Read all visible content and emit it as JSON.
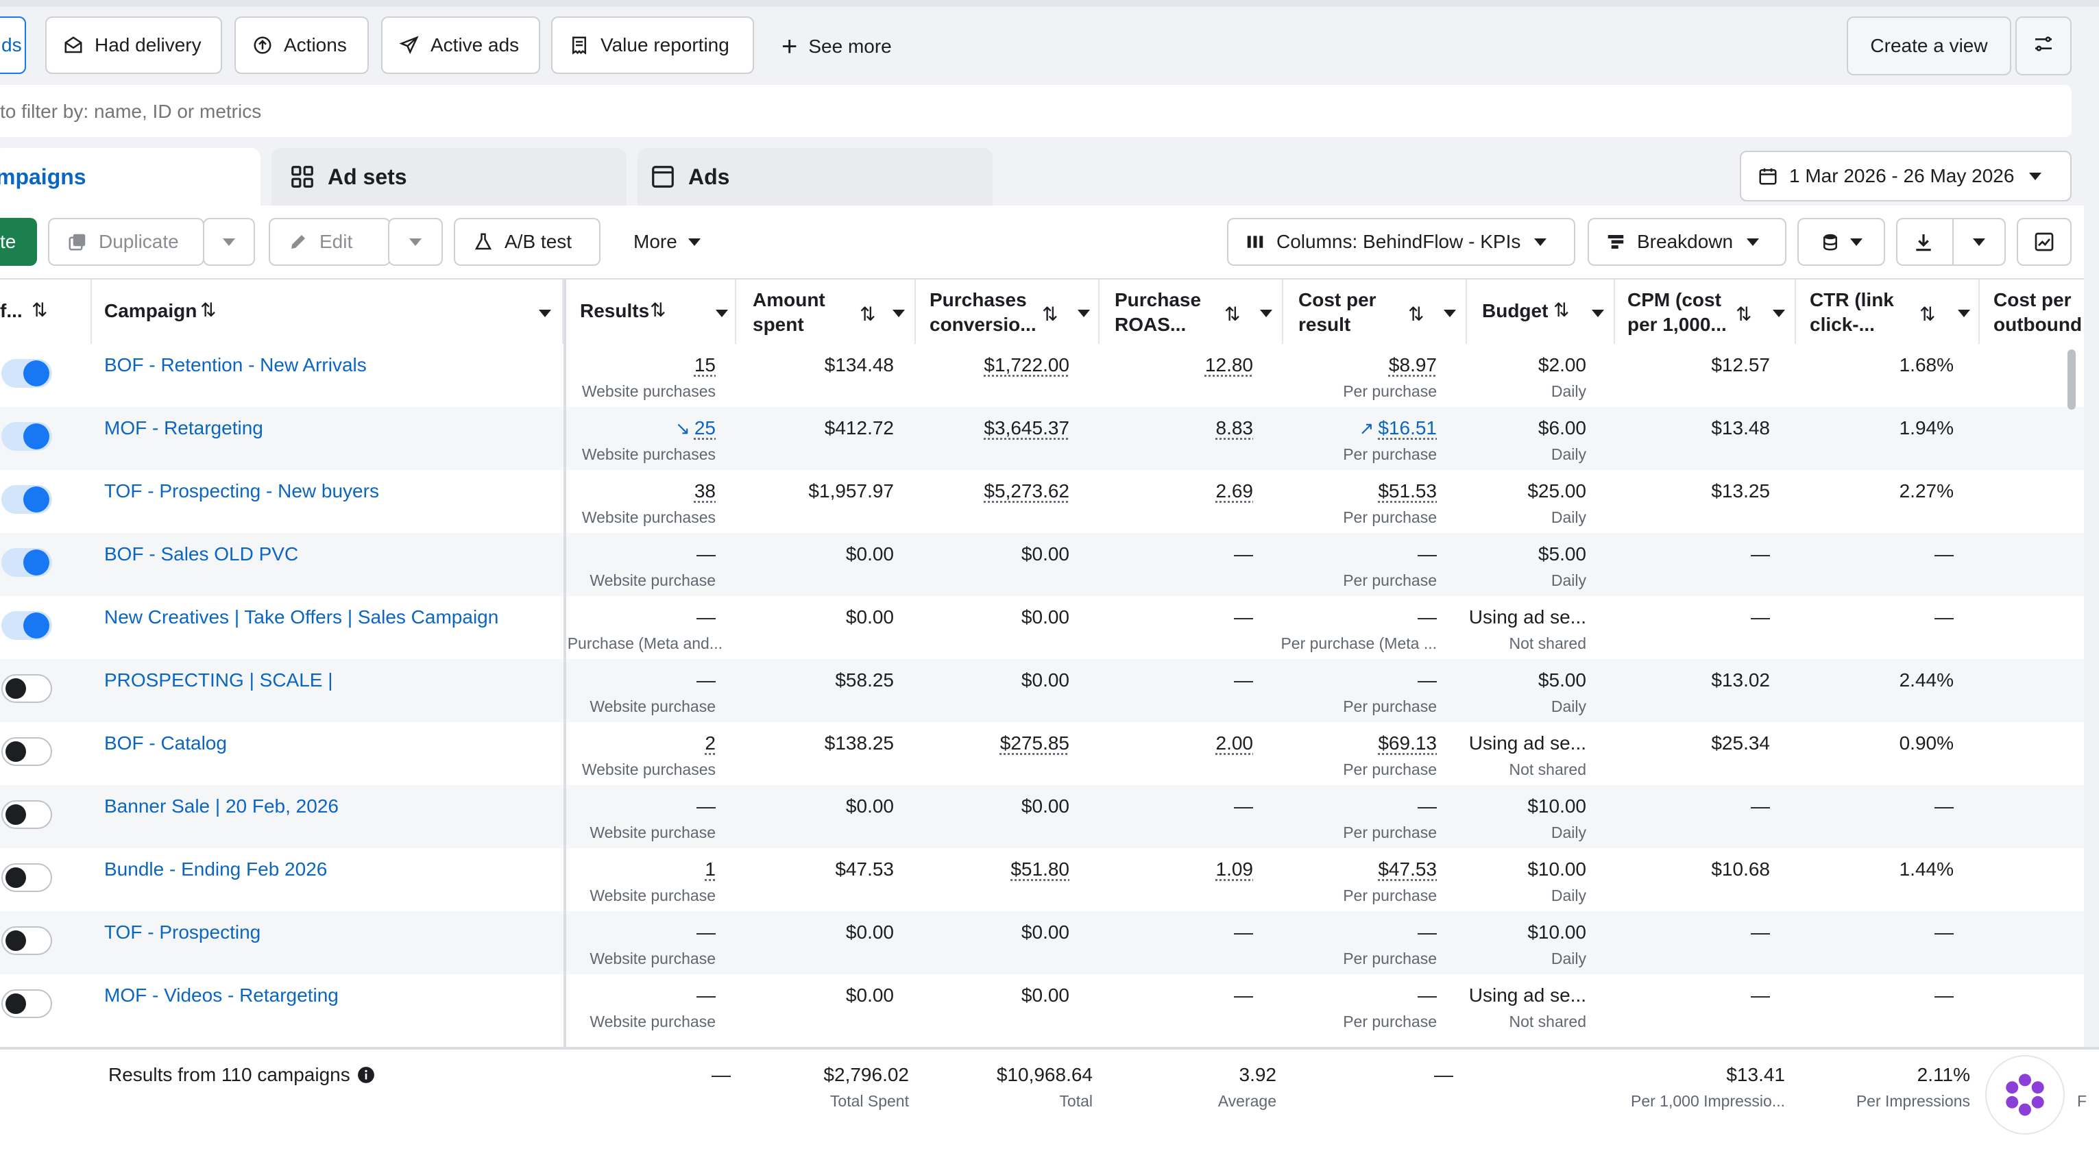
{
  "filters": {
    "first_partial": "ds",
    "had_delivery": "Had delivery",
    "actions": "Actions",
    "active_ads": "Active ads",
    "value_reporting": "Value reporting",
    "see_more": "See more",
    "create_view": "Create a view"
  },
  "search": {
    "placeholder": "to filter by: name, ID or metrics"
  },
  "tabs": {
    "campaigns": "mpaigns",
    "ad_sets": "Ad sets",
    "ads": "Ads"
  },
  "date_range": "1 Mar 2026 - 26 May 2026",
  "toolbar": {
    "create_partial": "te",
    "duplicate": "Duplicate",
    "edit": "Edit",
    "ab_test": "A/B test",
    "more": "More",
    "columns": "Columns: BehindFlow - KPIs",
    "breakdown": "Breakdown"
  },
  "columns": {
    "off": "f...",
    "campaign": "Campaign",
    "results": "Results",
    "amount_l1": "Amount",
    "amount_l2": "spent",
    "purch_l1": "Purchases",
    "purch_l2": "conversio...",
    "roas_l1": "Purchase",
    "roas_l2": "ROAS...",
    "cpr_l1": "Cost per",
    "cpr_l2": "result",
    "budget": "Budget",
    "cpm_l1": "CPM (cost",
    "cpm_l2": "per 1,000...",
    "ctr_l1": "CTR (link",
    "ctr_l2": "click-...",
    "cpo_l1": "Cost per",
    "cpo_l2": "outbound"
  },
  "rows": [
    {
      "on": true,
      "name": "BOF - Retention - New Arrivals",
      "results": "15",
      "results_sub": "Website purchases",
      "spent": "$134.48",
      "purchases": "$1,722.00",
      "roas": "12.80",
      "cpr": "$8.97",
      "cpr_sub": "Per purchase",
      "budget": "$2.00",
      "budget_sub": "Daily",
      "cpm": "$12.57",
      "ctr": "1.68%"
    },
    {
      "on": true,
      "name": "MOF - Retargeting",
      "results": "25",
      "results_sub": "Website purchases",
      "spent": "$412.72",
      "purchases": "$3,645.37",
      "roas": "8.83",
      "cpr": "$16.51",
      "cpr_sub": "Per purchase",
      "budget": "$6.00",
      "budget_sub": "Daily",
      "cpm": "$13.48",
      "ctr": "1.94%"
    },
    {
      "on": true,
      "name": "TOF - Prospecting - New buyers",
      "results": "38",
      "results_sub": "Website purchases",
      "spent": "$1,957.97",
      "purchases": "$5,273.62",
      "roas": "2.69",
      "cpr": "$51.53",
      "cpr_sub": "Per purchase",
      "budget": "$25.00",
      "budget_sub": "Daily",
      "cpm": "$13.25",
      "ctr": "2.27%"
    },
    {
      "on": true,
      "name": "BOF - Sales OLD PVC",
      "results": "—",
      "results_sub": "Website purchase",
      "spent": "$0.00",
      "purchases": "$0.00",
      "roas": "—",
      "cpr": "—",
      "cpr_sub": "Per purchase",
      "budget": "$5.00",
      "budget_sub": "Daily",
      "cpm": "—",
      "ctr": "—"
    },
    {
      "on": true,
      "name": "New Creatives | Take Offers | Sales Campaign",
      "results": "—",
      "results_sub": "Purchase (Meta and...",
      "spent": "$0.00",
      "purchases": "$0.00",
      "roas": "—",
      "cpr": "—",
      "cpr_sub": "Per purchase (Meta ...",
      "budget": "Using ad se...",
      "budget_sub": "Not shared",
      "cpm": "—",
      "ctr": "—"
    },
    {
      "on": false,
      "name": "PROSPECTING | SCALE |",
      "results": "—",
      "results_sub": "Website purchase",
      "spent": "$58.25",
      "purchases": "$0.00",
      "roas": "—",
      "cpr": "—",
      "cpr_sub": "Per purchase",
      "budget": "$5.00",
      "budget_sub": "Daily",
      "cpm": "$13.02",
      "ctr": "2.44%"
    },
    {
      "on": false,
      "name": "BOF - Catalog",
      "results": "2",
      "results_sub": "Website purchases",
      "spent": "$138.25",
      "purchases": "$275.85",
      "roas": "2.00",
      "cpr": "$69.13",
      "cpr_sub": "Per purchase",
      "budget": "Using ad se...",
      "budget_sub": "Not shared",
      "cpm": "$25.34",
      "ctr": "0.90%"
    },
    {
      "on": false,
      "name": "Banner Sale | 20 Feb, 2026",
      "results": "—",
      "results_sub": "Website purchase",
      "spent": "$0.00",
      "purchases": "$0.00",
      "roas": "—",
      "cpr": "—",
      "cpr_sub": "Per purchase",
      "budget": "$10.00",
      "budget_sub": "Daily",
      "cpm": "—",
      "ctr": "—"
    },
    {
      "on": false,
      "name": "Bundle - Ending Feb 2026",
      "results": "1",
      "results_sub": "Website purchase",
      "spent": "$47.53",
      "purchases": "$51.80",
      "roas": "1.09",
      "cpr": "$47.53",
      "cpr_sub": "Per purchase",
      "budget": "$10.00",
      "budget_sub": "Daily",
      "cpm": "$10.68",
      "ctr": "1.44%"
    },
    {
      "on": false,
      "name": "TOF - Prospecting",
      "results": "—",
      "results_sub": "Website purchase",
      "spent": "$0.00",
      "purchases": "$0.00",
      "roas": "—",
      "cpr": "—",
      "cpr_sub": "Per purchase",
      "budget": "$10.00",
      "budget_sub": "Daily",
      "cpm": "—",
      "ctr": "—"
    },
    {
      "on": false,
      "name": "MOF - Videos - Retargeting",
      "results": "—",
      "results_sub": "Website purchase",
      "spent": "$0.00",
      "purchases": "$0.00",
      "roas": "—",
      "cpr": "—",
      "cpr_sub": "Per purchase",
      "budget": "Using ad se...",
      "budget_sub": "Not shared",
      "cpm": "—",
      "ctr": "—"
    }
  ],
  "totals": {
    "label": "Results from 110 campaigns",
    "results": "—",
    "spent": "$2,796.02",
    "spent_sub": "Total Spent",
    "purchases": "$10,968.64",
    "purchases_sub": "Total",
    "roas": "3.92",
    "roas_sub": "Average",
    "cpr": "—",
    "cpm": "$13.41",
    "cpm_sub": "Per 1,000 Impressio...",
    "ctr": "2.11%",
    "ctr_sub": "Per Impressions",
    "edge": "F"
  },
  "colors": {
    "link_blue": "#0a66c2",
    "toggle_blue": "#1877f2",
    "create_green": "#1b7f4e"
  }
}
